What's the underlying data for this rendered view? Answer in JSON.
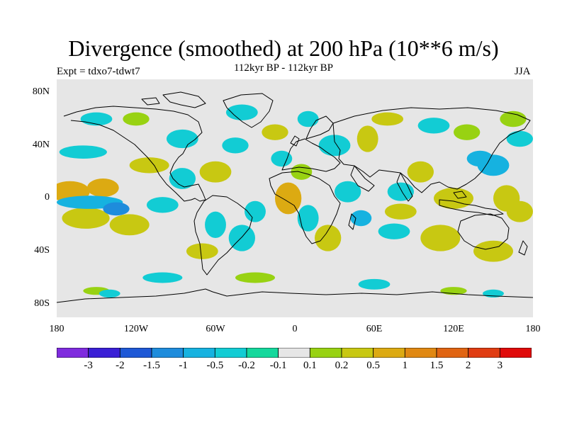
{
  "title": "Divergence (smoothed) at 200 hPa (10**6 m/s)",
  "subtitle_left": "Expt = tdxo7-tdwt7",
  "subtitle_center": "112kyr BP - 112kyr BP",
  "subtitle_right": "JJA",
  "y_axis_labels": [
    "80N",
    "40N",
    "0",
    "40S",
    "80S"
  ],
  "x_axis_labels": [
    "180",
    "120W",
    "60W",
    "0",
    "60E",
    "120E",
    "180"
  ],
  "colorbar": {
    "labels": [
      "-3",
      "-2",
      "-1.5",
      "-1",
      "-0.5",
      "-0.2",
      "-0.1",
      "0.1",
      "0.2",
      "0.5",
      "1",
      "1.5",
      "2",
      "3"
    ],
    "colors": [
      "#7f2bde",
      "#3a1fd6",
      "#1e58d6",
      "#1e8cdc",
      "#16b2e0",
      "#12ccd4",
      "#14d89c",
      "#e6e6e6",
      "#98d212",
      "#c8c812",
      "#dcaa12",
      "#e08812",
      "#e06412",
      "#e03c12",
      "#e00a0a"
    ]
  },
  "chart_data": {
    "type": "heatmap",
    "title": "Divergence (smoothed) at 200 hPa (10**6 m/s)",
    "xlim": [
      -180,
      180
    ],
    "ylim": [
      -90,
      90
    ],
    "levels": [
      -3,
      -2,
      -1.5,
      -1,
      -0.5,
      -0.2,
      -0.1,
      0.1,
      0.2,
      0.5,
      1,
      1.5,
      2,
      3
    ],
    "blobs": [
      {
        "lon": -170,
        "lat": 5,
        "rx": 15,
        "ry": 8,
        "value": 0.6
      },
      {
        "lon": -145,
        "lat": 8,
        "rx": 12,
        "ry": 7,
        "value": 0.8
      },
      {
        "lon": -158,
        "lat": -15,
        "rx": 18,
        "ry": 8,
        "value": 0.3
      },
      {
        "lon": -125,
        "lat": -20,
        "rx": 15,
        "ry": 8,
        "value": 0.3
      },
      {
        "lon": -155,
        "lat": -3,
        "rx": 25,
        "ry": 5,
        "value": -0.5
      },
      {
        "lon": -135,
        "lat": -8,
        "rx": 10,
        "ry": 5,
        "value": -1.0
      },
      {
        "lon": -100,
        "lat": -5,
        "rx": 12,
        "ry": 6,
        "value": -0.3
      },
      {
        "lon": -160,
        "lat": 35,
        "rx": 18,
        "ry": 5,
        "value": -0.2
      },
      {
        "lon": -110,
        "lat": 25,
        "rx": 15,
        "ry": 6,
        "value": 0.3
      },
      {
        "lon": -150,
        "lat": 60,
        "rx": 12,
        "ry": 5,
        "value": -0.2
      },
      {
        "lon": -120,
        "lat": 60,
        "rx": 10,
        "ry": 5,
        "value": 0.2
      },
      {
        "lon": -85,
        "lat": 45,
        "rx": 12,
        "ry": 7,
        "value": -0.3
      },
      {
        "lon": -85,
        "lat": 15,
        "rx": 10,
        "ry": 8,
        "value": -0.3
      },
      {
        "lon": -60,
        "lat": 20,
        "rx": 12,
        "ry": 8,
        "value": 0.3
      },
      {
        "lon": -45,
        "lat": 40,
        "rx": 10,
        "ry": 6,
        "value": -0.3
      },
      {
        "lon": -40,
        "lat": 65,
        "rx": 12,
        "ry": 6,
        "value": -0.2
      },
      {
        "lon": -15,
        "lat": 50,
        "rx": 10,
        "ry": 6,
        "value": 0.3
      },
      {
        "lon": -60,
        "lat": -20,
        "rx": 8,
        "ry": 10,
        "value": -0.3
      },
      {
        "lon": -70,
        "lat": -40,
        "rx": 12,
        "ry": 6,
        "value": 0.3
      },
      {
        "lon": -40,
        "lat": -30,
        "rx": 10,
        "ry": 10,
        "value": -0.3
      },
      {
        "lon": -30,
        "lat": -10,
        "rx": 8,
        "ry": 8,
        "value": -0.2
      },
      {
        "lon": -10,
        "lat": 30,
        "rx": 8,
        "ry": 6,
        "value": -0.2
      },
      {
        "lon": -5,
        "lat": 0,
        "rx": 10,
        "ry": 12,
        "value": 1.0
      },
      {
        "lon": 10,
        "lat": -15,
        "rx": 8,
        "ry": 10,
        "value": -0.3
      },
      {
        "lon": 5,
        "lat": 20,
        "rx": 8,
        "ry": 6,
        "value": 0.2
      },
      {
        "lon": 10,
        "lat": 60,
        "rx": 8,
        "ry": 6,
        "value": -0.2
      },
      {
        "lon": 30,
        "lat": 40,
        "rx": 12,
        "ry": 8,
        "value": -0.3
      },
      {
        "lon": 55,
        "lat": 45,
        "rx": 8,
        "ry": 10,
        "value": 0.3
      },
      {
        "lon": 40,
        "lat": 5,
        "rx": 10,
        "ry": 8,
        "value": -0.3
      },
      {
        "lon": 25,
        "lat": -30,
        "rx": 10,
        "ry": 10,
        "value": 0.3
      },
      {
        "lon": 50,
        "lat": -15,
        "rx": 8,
        "ry": 6,
        "value": -0.5
      },
      {
        "lon": 75,
        "lat": -25,
        "rx": 12,
        "ry": 6,
        "value": -0.3
      },
      {
        "lon": 80,
        "lat": 5,
        "rx": 10,
        "ry": 7,
        "value": -0.2
      },
      {
        "lon": 70,
        "lat": 60,
        "rx": 12,
        "ry": 5,
        "value": 0.3
      },
      {
        "lon": 95,
        "lat": 20,
        "rx": 10,
        "ry": 8,
        "value": 0.3
      },
      {
        "lon": 80,
        "lat": -10,
        "rx": 12,
        "ry": 6,
        "value": 0.3
      },
      {
        "lon": 105,
        "lat": 55,
        "rx": 12,
        "ry": 6,
        "value": -0.3
      },
      {
        "lon": 130,
        "lat": 50,
        "rx": 10,
        "ry": 6,
        "value": 0.2
      },
      {
        "lon": 140,
        "lat": 30,
        "rx": 10,
        "ry": 6,
        "value": -0.5
      },
      {
        "lon": 120,
        "lat": 0,
        "rx": 15,
        "ry": 8,
        "value": 0.3
      },
      {
        "lon": 150,
        "lat": 25,
        "rx": 12,
        "ry": 8,
        "value": -0.5
      },
      {
        "lon": 160,
        "lat": 0,
        "rx": 10,
        "ry": 10,
        "value": 0.3
      },
      {
        "lon": 170,
        "lat": -10,
        "rx": 10,
        "ry": 8,
        "value": 0.5
      },
      {
        "lon": 110,
        "lat": -30,
        "rx": 15,
        "ry": 10,
        "value": 0.3
      },
      {
        "lon": 150,
        "lat": -40,
        "rx": 15,
        "ry": 8,
        "value": 0.3
      },
      {
        "lon": 170,
        "lat": 45,
        "rx": 10,
        "ry": 6,
        "value": -0.2
      },
      {
        "lon": 165,
        "lat": 60,
        "rx": 10,
        "ry": 6,
        "value": 0.2
      },
      {
        "lon": -100,
        "lat": -60,
        "rx": 15,
        "ry": 4,
        "value": -0.2
      },
      {
        "lon": -30,
        "lat": -60,
        "rx": 15,
        "ry": 4,
        "value": 0.2
      },
      {
        "lon": 60,
        "lat": -65,
        "rx": 12,
        "ry": 4,
        "value": -0.2
      },
      {
        "lon": -150,
        "lat": -70,
        "rx": 10,
        "ry": 3,
        "value": 0.2
      },
      {
        "lon": 120,
        "lat": -70,
        "rx": 10,
        "ry": 3,
        "value": 0.2
      },
      {
        "lon": -140,
        "lat": -72,
        "rx": 8,
        "ry": 3,
        "value": -0.2
      },
      {
        "lon": 150,
        "lat": -72,
        "rx": 8,
        "ry": 3,
        "value": -0.2
      }
    ]
  }
}
